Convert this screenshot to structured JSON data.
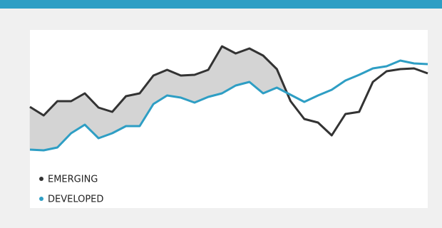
{
  "chart_data": {
    "type": "line",
    "series": [
      {
        "name": "EMERGING",
        "color": "#333333",
        "values": [
          142,
          130,
          150,
          150,
          161,
          141,
          135,
          157,
          161,
          186,
          194,
          186,
          187,
          194,
          227,
          217,
          224,
          214,
          195,
          150,
          125,
          120,
          102,
          132,
          135,
          177,
          192,
          195,
          196,
          189
        ]
      },
      {
        "name": "DEVELOPED",
        "color": "#2e9ec4",
        "values": [
          82,
          81,
          85,
          105,
          117,
          98,
          105,
          115,
          115,
          146,
          158,
          155,
          148,
          156,
          161,
          172,
          177,
          161,
          169,
          159,
          149,
          158,
          166,
          179,
          187,
          196,
          199,
          207,
          203,
          202
        ]
      }
    ],
    "ylim": [
      0,
      250
    ],
    "fill_between": {
      "color": "#d4d4d4"
    },
    "legend": "lower left",
    "accent_color": "#2e9ec4"
  }
}
